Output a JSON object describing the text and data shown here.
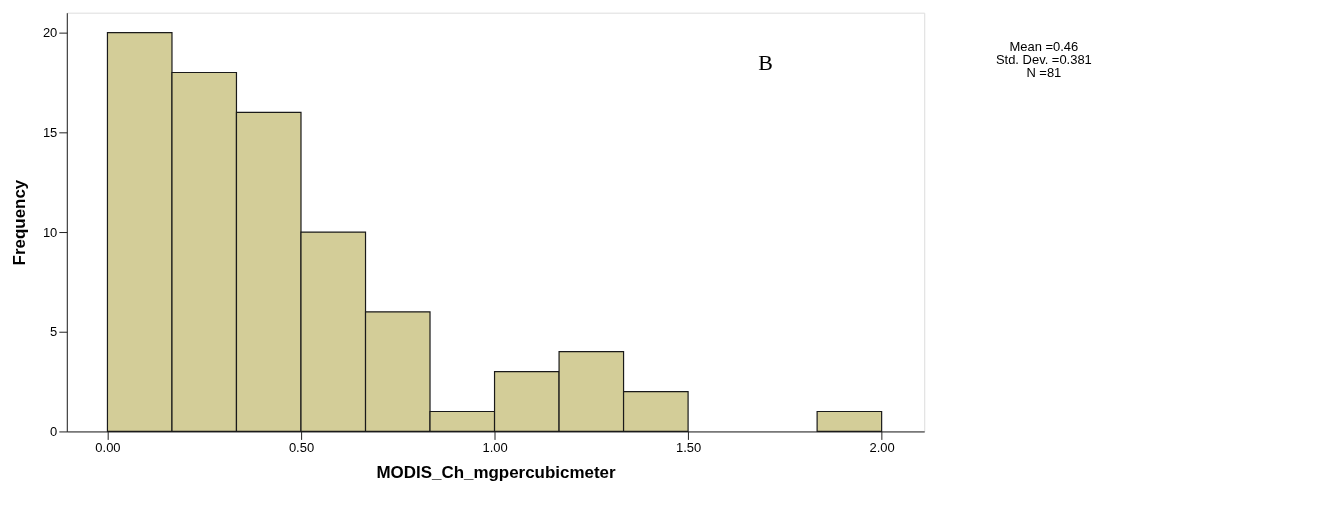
{
  "chart_data": {
    "type": "histogram",
    "xlabel": "MODIS_Ch_mgpercubicmeter",
    "ylabel": "Frequency",
    "bins": [
      0,
      0.1667,
      0.3333,
      0.5,
      0.6667,
      0.8333,
      1.0,
      1.1667,
      1.3333,
      1.5,
      1.6667,
      1.8333,
      2.0
    ],
    "values": [
      20,
      18,
      16,
      10,
      6,
      1,
      3,
      4,
      2,
      0,
      0,
      1
    ],
    "color": "#d3cd98",
    "xlim": [
      -0.105,
      2.11
    ],
    "ylim": [
      0,
      21
    ],
    "xticks": [
      {
        "value": 0,
        "label": "0.00"
      },
      {
        "value": 0.5,
        "label": "0.50"
      },
      {
        "value": 1.0,
        "label": "1.00"
      },
      {
        "value": 1.5,
        "label": "1.50"
      },
      {
        "value": 2.0,
        "label": "2.00"
      }
    ],
    "yticks": [
      0,
      5,
      10,
      15,
      20
    ],
    "grid": false,
    "annotations": [
      "B",
      "Mean =0.46",
      "Std. Dev. =0.381",
      "N =81"
    ]
  }
}
